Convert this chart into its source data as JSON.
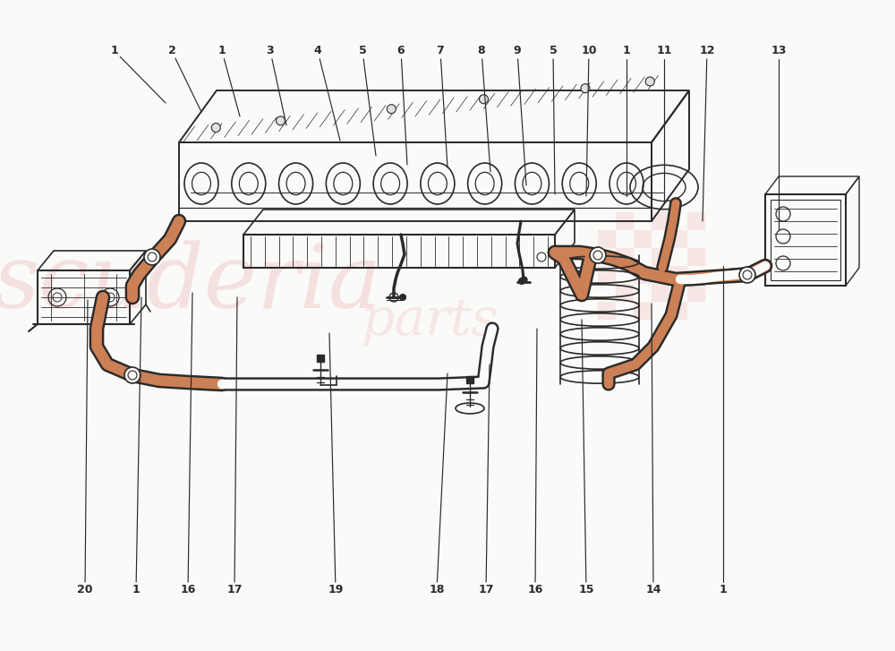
{
  "background_color": "#FAFAF8",
  "line_color": "#2a2a2a",
  "hose_color": "#C87040",
  "hose_inner": "#E8A878",
  "watermark_salmon": "#f0c8c8",
  "figsize": [
    10.0,
    7.27
  ],
  "dpi": 100,
  "top_labels": [
    [
      "1",
      128,
      670,
      185,
      612
    ],
    [
      "2",
      192,
      670,
      225,
      602
    ],
    [
      "1",
      248,
      670,
      268,
      597
    ],
    [
      "3",
      302,
      670,
      320,
      587
    ],
    [
      "4",
      355,
      670,
      380,
      570
    ],
    [
      "5",
      405,
      670,
      420,
      553
    ],
    [
      "6",
      448,
      670,
      455,
      543
    ],
    [
      "7",
      492,
      670,
      500,
      540
    ],
    [
      "8",
      538,
      670,
      548,
      535
    ],
    [
      "9",
      578,
      670,
      588,
      520
    ],
    [
      "5",
      618,
      670,
      620,
      510
    ],
    [
      "10",
      658,
      670,
      655,
      508
    ],
    [
      "1",
      700,
      670,
      700,
      508
    ],
    [
      "11",
      742,
      670,
      742,
      500
    ],
    [
      "12",
      790,
      670,
      785,
      480
    ],
    [
      "13",
      870,
      670,
      870,
      470
    ]
  ],
  "bottom_labels": [
    [
      "20",
      95,
      68,
      98,
      392
    ],
    [
      "1",
      152,
      68,
      158,
      395
    ],
    [
      "16",
      210,
      68,
      215,
      400
    ],
    [
      "17",
      262,
      68,
      265,
      395
    ],
    [
      "19",
      375,
      68,
      368,
      355
    ],
    [
      "18",
      488,
      68,
      500,
      310
    ],
    [
      "17",
      543,
      68,
      547,
      320
    ],
    [
      "16",
      598,
      68,
      600,
      360
    ],
    [
      "15",
      655,
      68,
      650,
      370
    ],
    [
      "14",
      730,
      68,
      728,
      388
    ],
    [
      "1",
      808,
      68,
      808,
      430
    ]
  ]
}
